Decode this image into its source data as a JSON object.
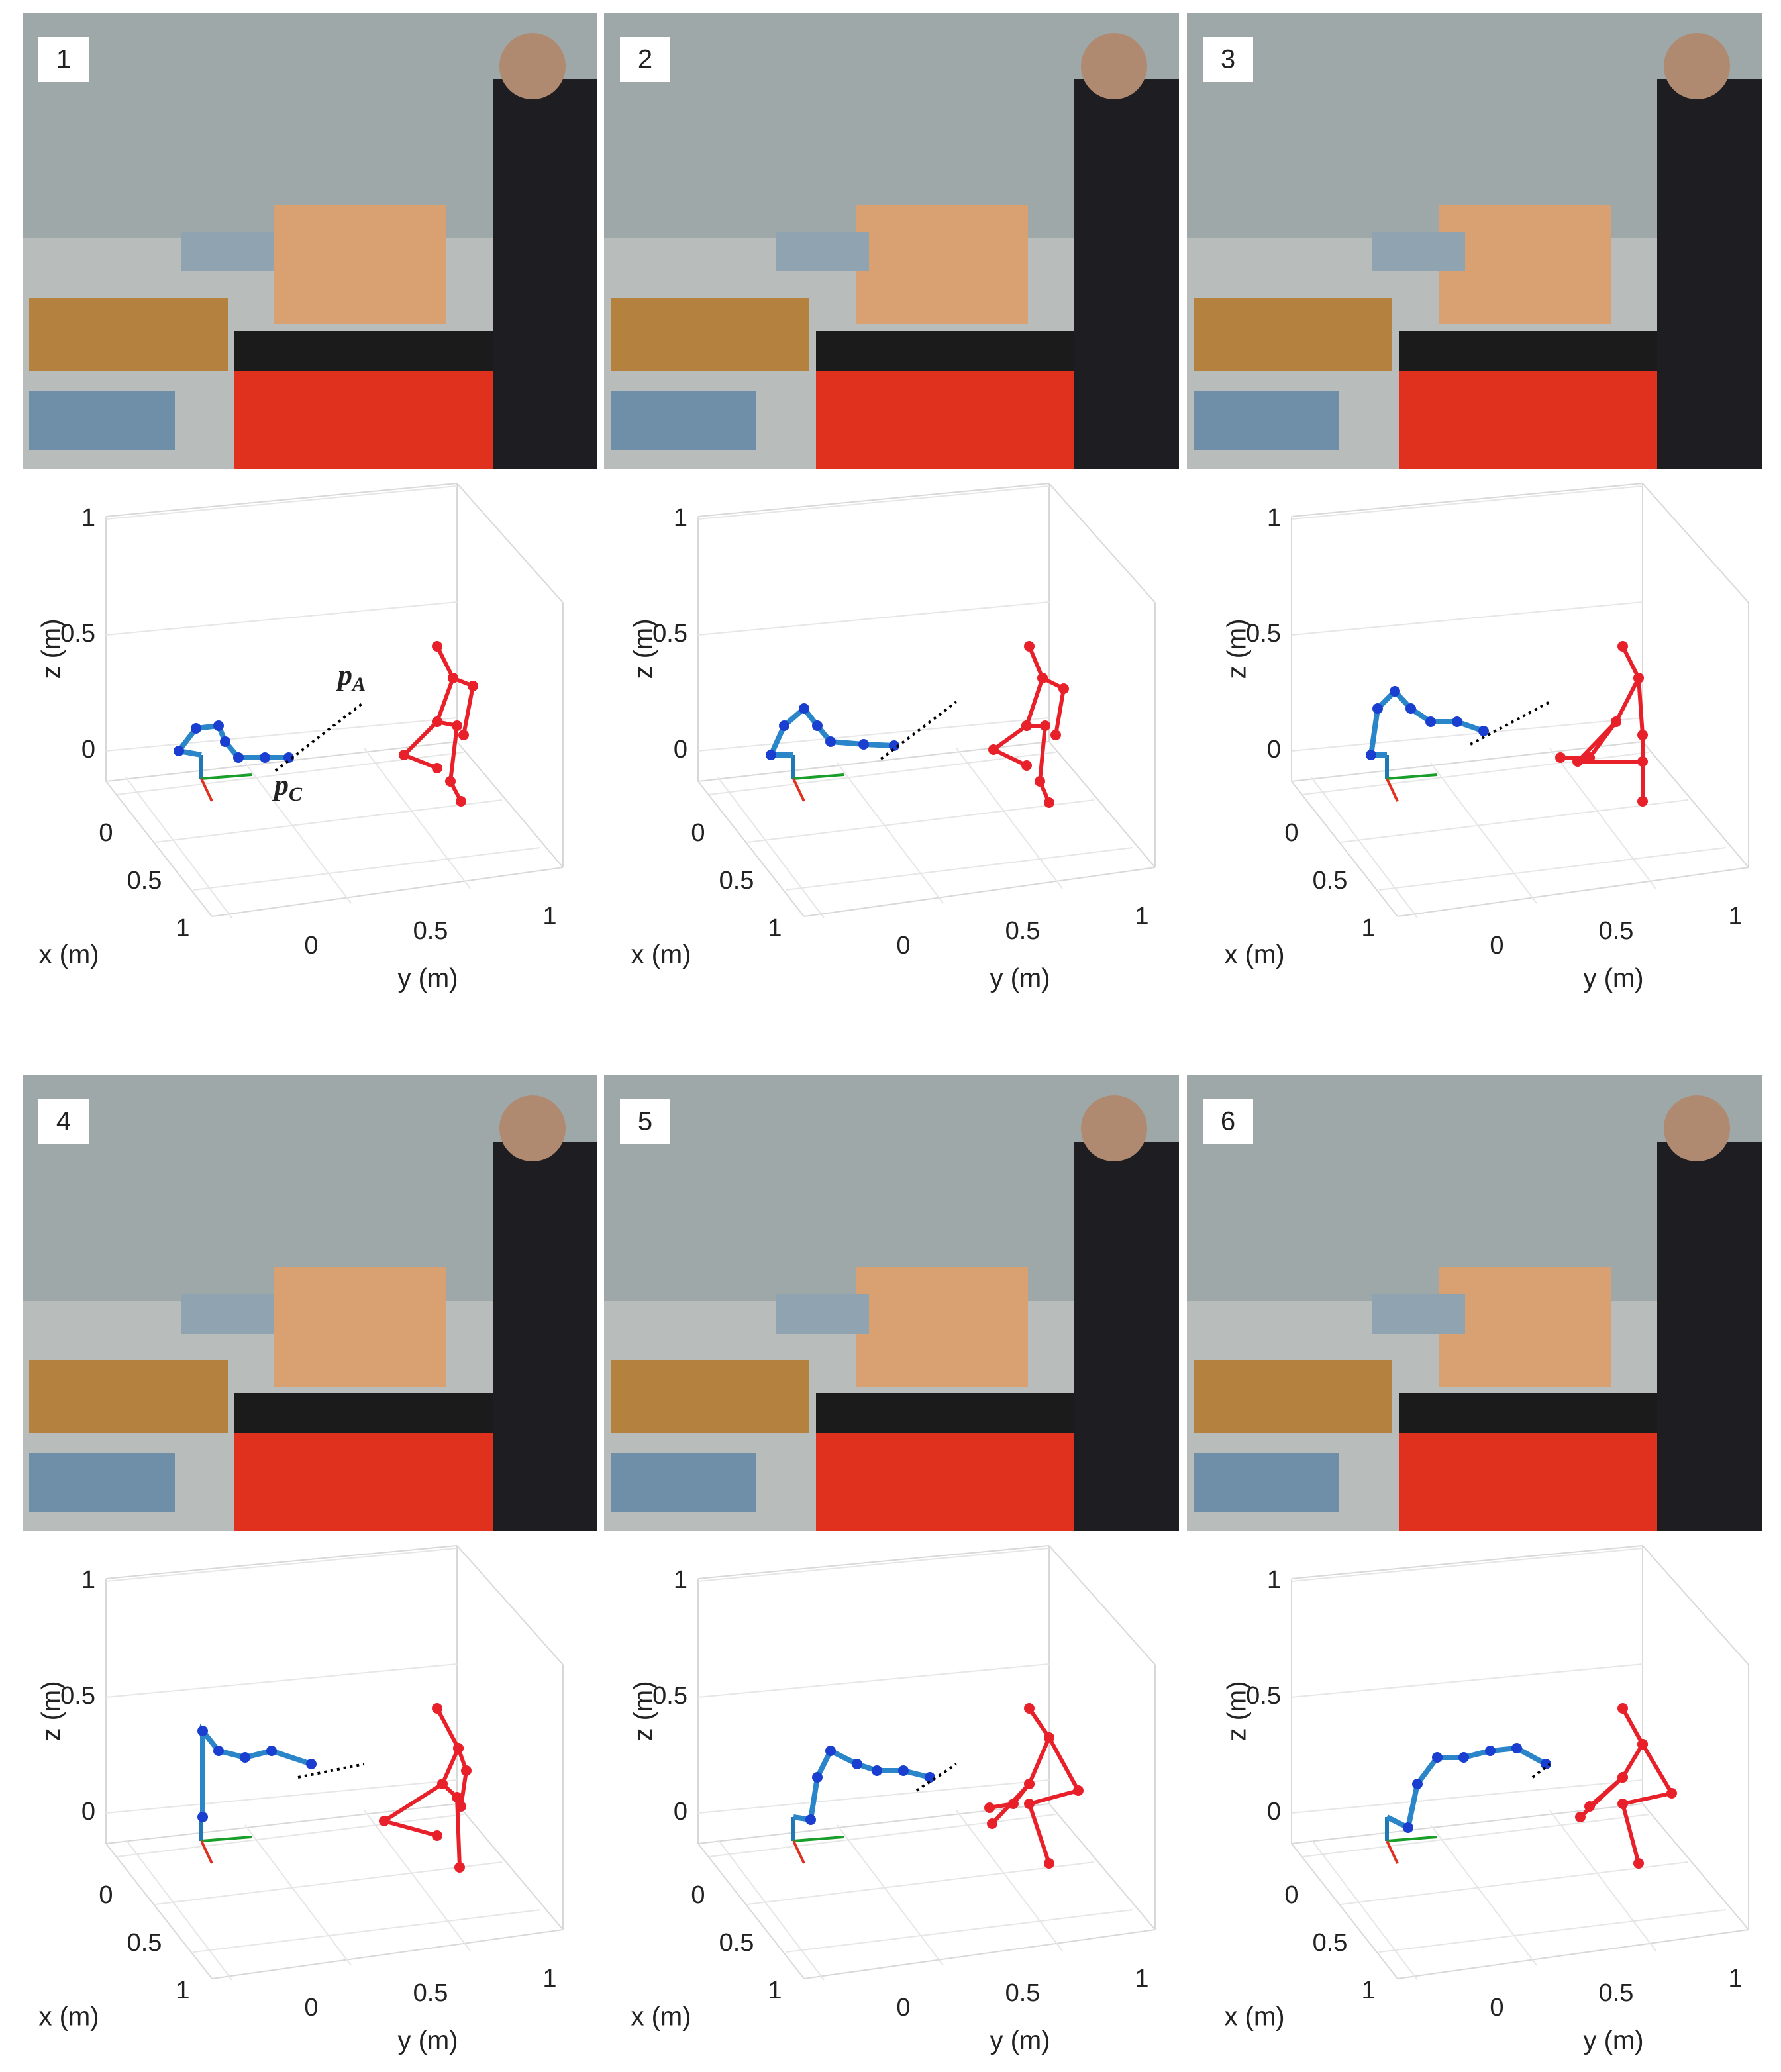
{
  "panels": [
    {
      "label": "1"
    },
    {
      "label": "2"
    },
    {
      "label": "3"
    },
    {
      "label": "4"
    },
    {
      "label": "5"
    },
    {
      "label": "6"
    }
  ],
  "plot_axes": {
    "xlabel": "x (m)",
    "ylabel": "y (m)",
    "zlabel": "z (m)",
    "xticks": [
      0,
      0.5,
      1
    ],
    "yticks": [
      0,
      0.5,
      1
    ],
    "zticks": [
      0,
      0.5,
      1
    ]
  },
  "annotations": {
    "point_a": {
      "symbol": "p",
      "subscript": "A"
    },
    "point_c": {
      "symbol": "p",
      "subscript": "C"
    }
  }
}
